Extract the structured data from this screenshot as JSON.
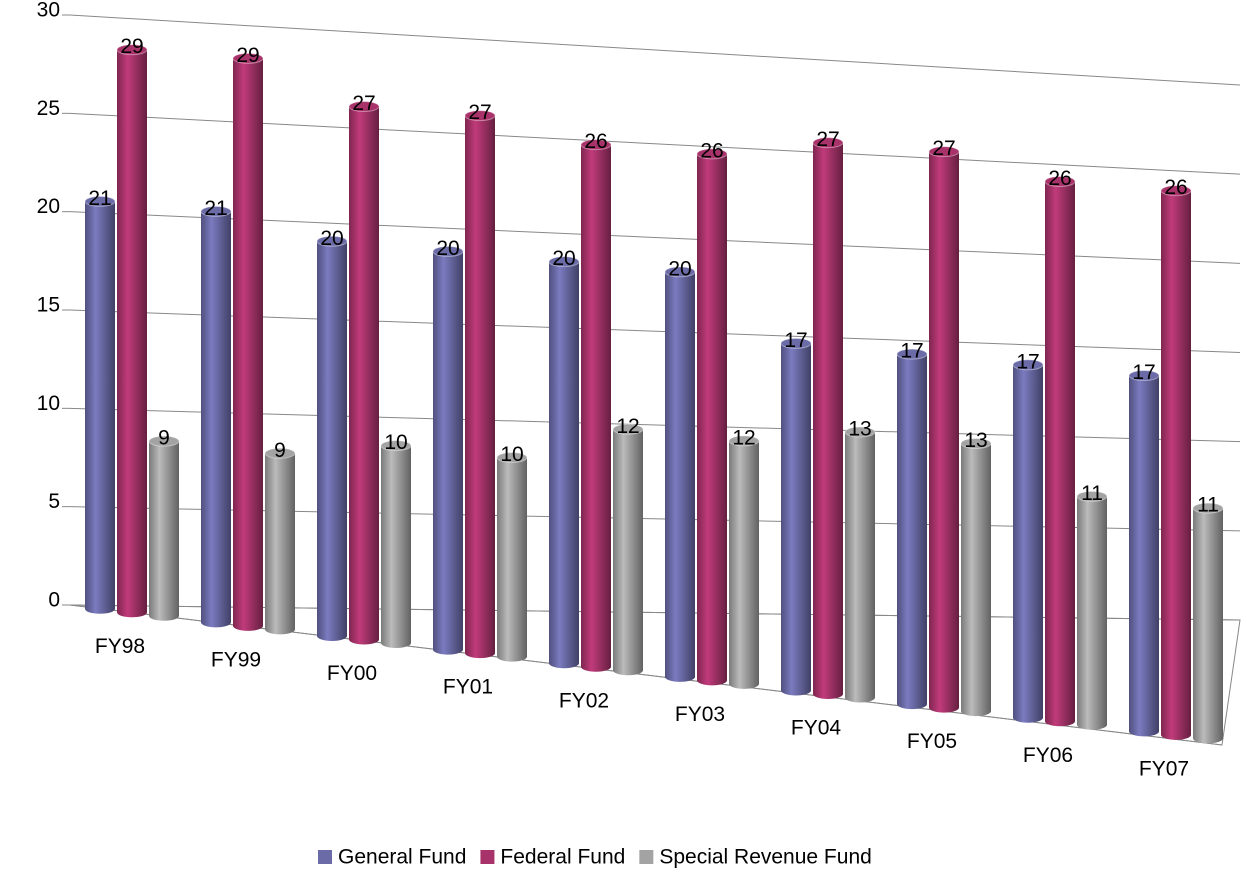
{
  "chart_data": {
    "type": "bar3d",
    "categories": [
      "FY98",
      "FY99",
      "FY00",
      "FY01",
      "FY02",
      "FY03",
      "FY04",
      "FY05",
      "FY06",
      "FY07"
    ],
    "series": [
      {
        "name": "General Fund",
        "color": "#6b6ba8",
        "values": [
          21,
          21,
          20,
          20,
          20,
          20,
          17,
          17,
          17,
          17
        ]
      },
      {
        "name": "Federal Fund",
        "color": "#a8336b",
        "values": [
          29,
          29,
          27,
          27,
          26,
          26,
          27,
          27,
          26,
          26
        ]
      },
      {
        "name": "Special Revenue Fund",
        "color": "#a3a3a3",
        "values": [
          9,
          9,
          10,
          10,
          12,
          12,
          13,
          13,
          11,
          11
        ]
      }
    ],
    "ylim": [
      0,
      30
    ],
    "yticks": [
      0,
      5,
      10,
      15,
      20,
      25,
      30
    ],
    "grid": true,
    "legend": "bottom"
  }
}
